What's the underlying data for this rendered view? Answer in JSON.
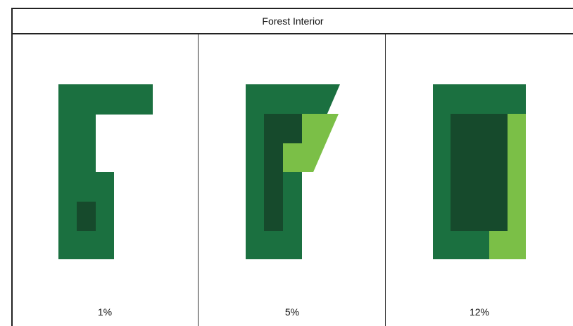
{
  "title": "Forest Interior",
  "panels": [
    {
      "label": "1%"
    },
    {
      "label": "5%"
    },
    {
      "label": "12%"
    }
  ],
  "colors": {
    "forest": "#1b7040",
    "interior": "#164a2c",
    "edge_light": "#7bbf47",
    "border": "#222222"
  }
}
